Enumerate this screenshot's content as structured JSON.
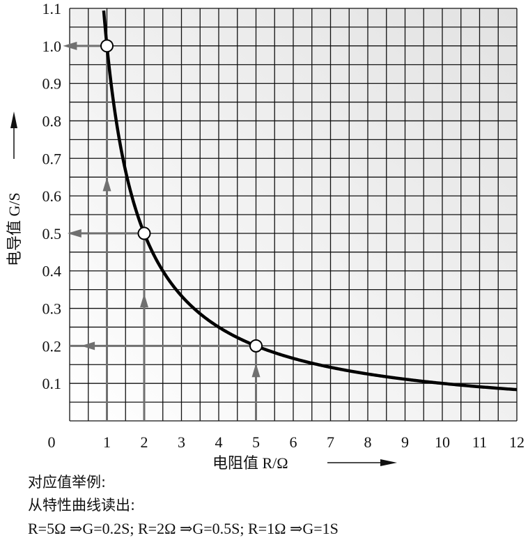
{
  "chart_data": {
    "type": "line",
    "x_ticks": [
      "1",
      "2",
      "3",
      "4",
      "5",
      "6",
      "7",
      "8",
      "9",
      "10",
      "11",
      "12"
    ],
    "origin_label": "0",
    "y_ticks": [
      "0.1",
      "0.2",
      "0.3",
      "0.4",
      "0.5",
      "0.6",
      "0.7",
      "0.8",
      "0.9",
      "1.0",
      "1.1"
    ],
    "xlim": [
      0,
      12
    ],
    "ylim": [
      0,
      1.1
    ],
    "xlabel": "电阻值 R/Ω",
    "ylabel": "电导值 G/S",
    "series": [
      {
        "x": [
          0.9,
          1,
          1.5,
          2,
          2.5,
          3,
          4,
          5,
          6,
          7,
          8,
          9,
          10,
          11,
          12
        ],
        "y": [
          1.111,
          1.0,
          0.667,
          0.5,
          0.4,
          0.333,
          0.25,
          0.2,
          0.167,
          0.143,
          0.125,
          0.111,
          0.1,
          0.091,
          0.083
        ]
      }
    ],
    "highlighted_points": [
      {
        "x": 1,
        "y": 1.0
      },
      {
        "x": 2,
        "y": 0.5
      },
      {
        "x": 5,
        "y": 0.2
      }
    ],
    "grid": true
  },
  "notes": {
    "line1": "对应值举例:",
    "line2": "从特性曲线读出:",
    "line3": "R=5Ω ⇒G=0.2S; R=2Ω ⇒G=0.5S; R=1Ω ⇒G=1S"
  },
  "colors": {
    "curve": "#000000",
    "guide": "#707070",
    "grid": "#000000",
    "background_light": "#ffffff",
    "background_dark": "#e4e4e4"
  }
}
